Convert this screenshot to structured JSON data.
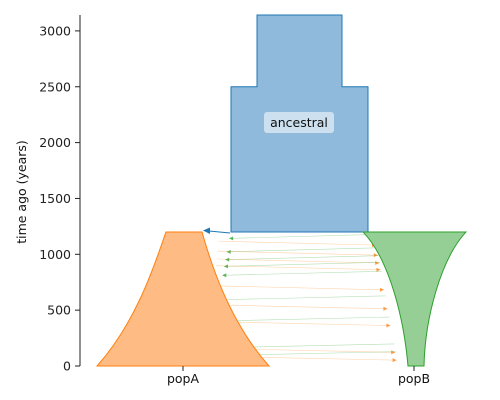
{
  "axis": {
    "ylabel": "time ago (years)",
    "ticks": [
      0,
      500,
      1000,
      1500,
      2000,
      2500,
      3000
    ],
    "ymax": 3130
  },
  "demes": {
    "ancestral": {
      "label": "ancestral",
      "color": "#1f77b4",
      "fill": "#8fbadb"
    },
    "popA": {
      "label": "popA",
      "color": "#ff7f0e",
      "fill": "#ffbb84"
    },
    "popB": {
      "label": "popB",
      "color": "#2ca02c",
      "fill": "#95cf95"
    }
  },
  "model": {
    "split_time": 1200,
    "ancestral_epoch_time": 2500,
    "migration_times": [
      1160,
      1100,
      1040,
      1010,
      970,
      940,
      910,
      880,
      830,
      700,
      610,
      530,
      420,
      380,
      180,
      140,
      110,
      70
    ]
  }
}
